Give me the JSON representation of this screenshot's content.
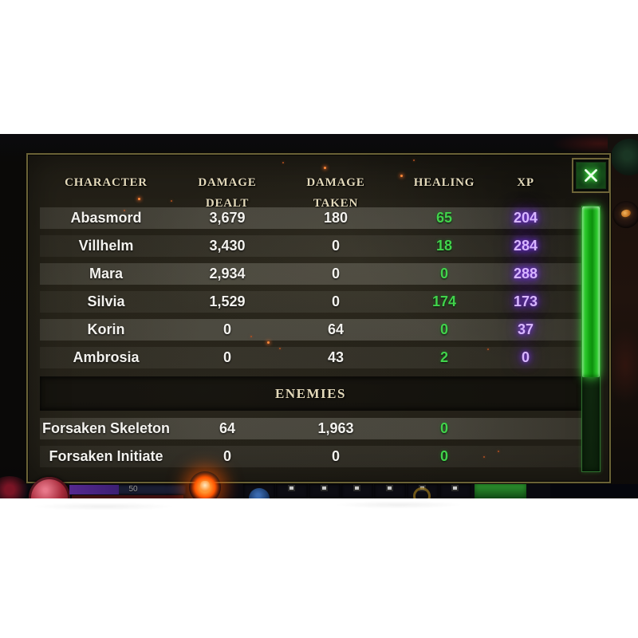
{
  "stats_table": {
    "columns": [
      "CHARACTER",
      "DAMAGE DEALT",
      "DAMAGE TAKEN",
      "HEALING",
      "XP"
    ],
    "characters": [
      {
        "name": "Abasmord",
        "damage_dealt": "3,679",
        "damage_taken": "180",
        "healing": "65",
        "xp": "204"
      },
      {
        "name": "Villhelm",
        "damage_dealt": "3,430",
        "damage_taken": "0",
        "healing": "18",
        "xp": "284"
      },
      {
        "name": "Mara",
        "damage_dealt": "2,934",
        "damage_taken": "0",
        "healing": "0",
        "xp": "288"
      },
      {
        "name": "Silvia",
        "damage_dealt": "1,529",
        "damage_taken": "0",
        "healing": "174",
        "xp": "173"
      },
      {
        "name": "Korin",
        "damage_dealt": "0",
        "damage_taken": "64",
        "healing": "0",
        "xp": "37"
      },
      {
        "name": "Ambrosia",
        "damage_dealt": "0",
        "damage_taken": "43",
        "healing": "2",
        "xp": "0"
      }
    ],
    "enemies_section_label": "ENEMIES",
    "enemies": [
      {
        "name": "Forsaken Skeleton",
        "damage_dealt": "64",
        "damage_taken": "1,963",
        "healing": "0"
      },
      {
        "name": "Forsaken Initiate",
        "damage_dealt": "0",
        "damage_taken": "0",
        "healing": "0"
      }
    ]
  },
  "hud": {
    "resource_value": "50"
  },
  "icons": {
    "close": "close-x",
    "scrollbar": "vertical-green-scrollbar"
  },
  "colors": {
    "healing_value": "#41d34b",
    "xp_value": "#d8b6ff",
    "xp_glow": "#7a2bff",
    "scrollbar_green": "#3bdd3b",
    "close_button_glow": "#49e849",
    "header_text": "#e3d9ba"
  }
}
